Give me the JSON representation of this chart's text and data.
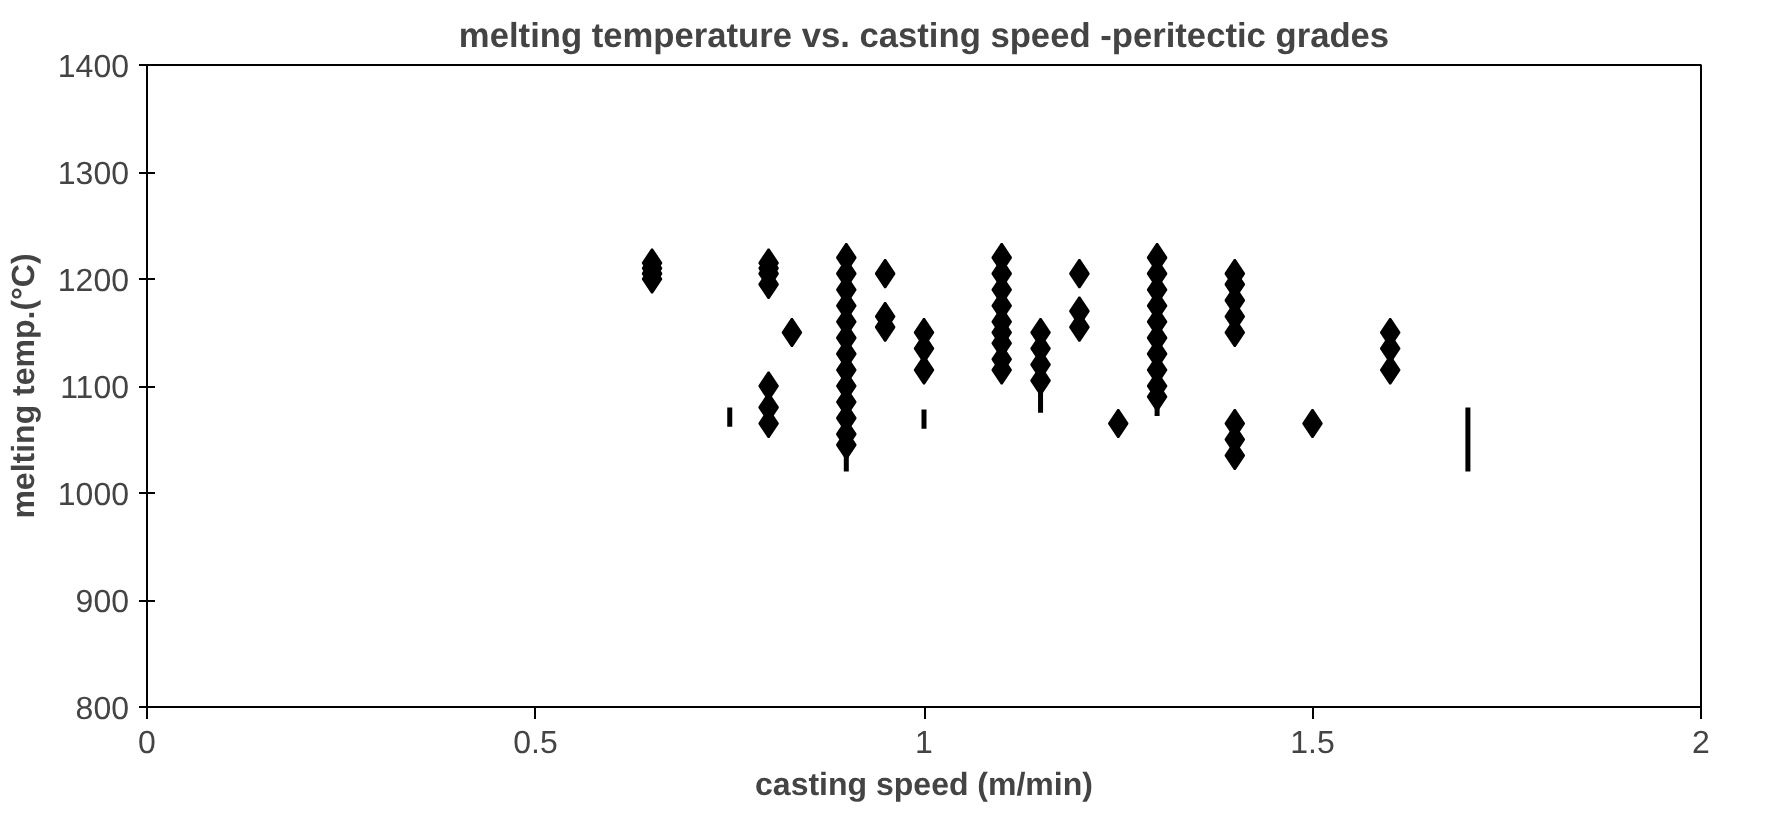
{
  "chart_data": {
    "type": "scatter",
    "title": "melting temperature vs. casting speed -peritectic grades",
    "xlabel": "casting speed (m/min)",
    "ylabel": "melting temp.(°C)",
    "xlim": [
      0,
      2
    ],
    "xticks": [
      0,
      0.5,
      1,
      1.5,
      2
    ],
    "ylim": [
      800,
      1400
    ],
    "yticks": [
      800,
      900,
      1000,
      1100,
      1200,
      1300,
      1400
    ],
    "grid": false,
    "series": [
      {
        "color": "#000000",
        "marker": "diamond",
        "x": [
          0.65,
          0.65,
          0.65,
          0.65,
          0.8,
          0.8,
          0.8,
          0.8,
          0.8,
          0.8,
          0.8,
          0.83,
          0.9,
          0.9,
          0.9,
          0.9,
          0.9,
          0.9,
          0.9,
          0.9,
          0.9,
          0.9,
          0.9,
          0.9,
          0.9,
          0.95,
          0.95,
          0.95,
          1.0,
          1.0,
          1.0,
          1.1,
          1.1,
          1.1,
          1.1,
          1.1,
          1.1,
          1.1,
          1.1,
          1.1,
          1.15,
          1.15,
          1.15,
          1.15,
          1.2,
          1.2,
          1.2,
          1.25,
          1.3,
          1.3,
          1.3,
          1.3,
          1.3,
          1.3,
          1.3,
          1.3,
          1.3,
          1.3,
          1.4,
          1.4,
          1.4,
          1.4,
          1.4,
          1.4,
          1.4,
          1.4,
          1.5,
          1.6,
          1.6,
          1.6
        ],
        "values": [
          1200,
          1205,
          1210,
          1215,
          1195,
          1205,
          1210,
          1215,
          1065,
          1080,
          1100,
          1150,
          1220,
          1205,
          1190,
          1175,
          1160,
          1145,
          1130,
          1115,
          1100,
          1085,
          1070,
          1055,
          1045,
          1205,
          1165,
          1155,
          1150,
          1135,
          1115,
          1220,
          1205,
          1190,
          1175,
          1160,
          1150,
          1140,
          1125,
          1115,
          1150,
          1135,
          1120,
          1105,
          1205,
          1170,
          1155,
          1065,
          1220,
          1205,
          1190,
          1175,
          1160,
          1145,
          1130,
          1115,
          1100,
          1090,
          1205,
          1195,
          1180,
          1165,
          1150,
          1065,
          1050,
          1035,
          1065,
          1150,
          1135,
          1115
        ]
      },
      {
        "type": "line",
        "color": "#000000",
        "marker": "none",
        "x": [
          0.75,
          0.75,
          null,
          0.9,
          0.9,
          null,
          1.0,
          1.0,
          null,
          1.15,
          1.15,
          null,
          1.3,
          1.3,
          null,
          1.7,
          1.7
        ],
        "values": [
          1062,
          1080,
          null,
          1020,
          1045,
          null,
          1060,
          1078,
          null,
          1075,
          1095,
          null,
          1072,
          1090,
          null,
          1020,
          1080
        ]
      }
    ]
  }
}
